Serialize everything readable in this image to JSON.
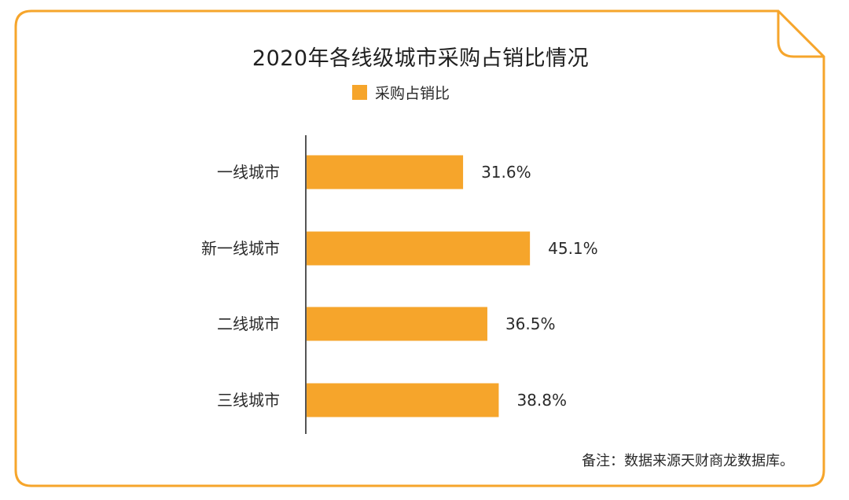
{
  "title": "2020年各线级城市采购占销比情况",
  "legend": {
    "label": "采购占销比",
    "color": "#f6a52b"
  },
  "note": "备注：数据来源天财商龙数据库。",
  "colors": {
    "accent": "#f6a52b",
    "border": "#f6a52b",
    "axis": "#555555"
  },
  "chart_data": {
    "type": "bar",
    "orientation": "horizontal",
    "categories": [
      "一线城市",
      "新一线城市",
      "二线城市",
      "三线城市"
    ],
    "series": [
      {
        "name": "采购占销比",
        "values": [
          31.6,
          45.1,
          36.5,
          38.8
        ]
      }
    ],
    "value_labels": [
      "31.6%",
      "45.1%",
      "36.5%",
      "38.8%"
    ],
    "unit": "%",
    "xlim": [
      0,
      100
    ],
    "grid": false,
    "legend_position": "top-center"
  }
}
